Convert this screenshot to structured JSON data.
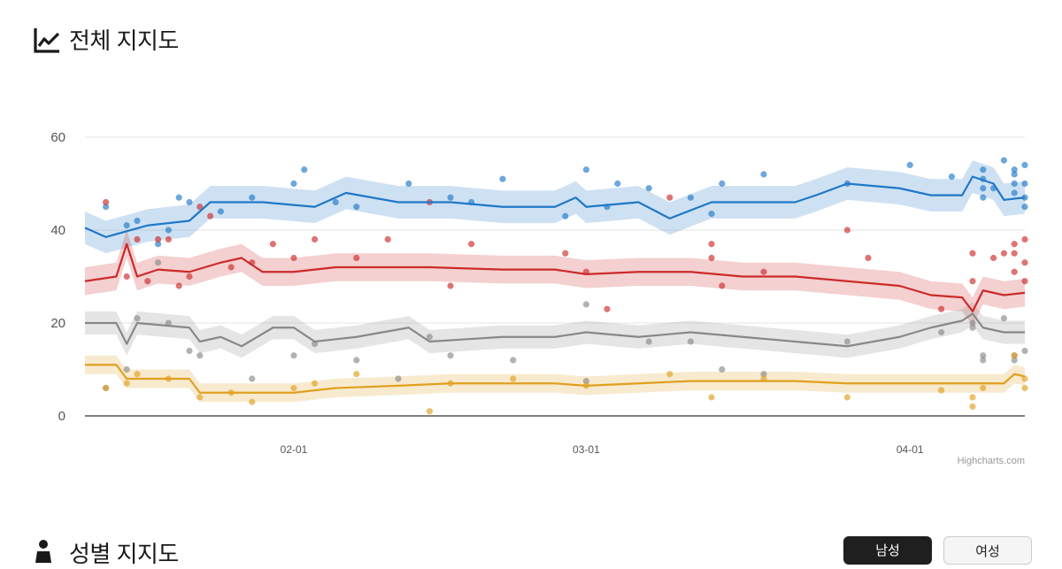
{
  "header": {
    "title": "전체 지지도",
    "icon": "line-chart-icon"
  },
  "gender_section": {
    "title": "성별 지지도",
    "icon": "person-icon",
    "tabs": [
      {
        "label": "남성",
        "active": true
      },
      {
        "label": "여성",
        "active": false
      }
    ]
  },
  "credit": "Highcharts.com",
  "colors": {
    "blue": "#1f78c8",
    "red": "#cc2a2a",
    "gray": "#888888",
    "yellow": "#e0a020"
  },
  "chart_data": {
    "type": "line",
    "title": "",
    "x_axis_type": "date",
    "xlim": [
      "2022-01-12",
      "2022-04-12"
    ],
    "ylim": [
      0,
      60
    ],
    "yticks": [
      0,
      20,
      40,
      60
    ],
    "xticks": [
      "02-01",
      "03-01",
      "04-01"
    ],
    "grid": true,
    "series": [
      {
        "color": "#1f78c8",
        "line": [
          [
            "2022-01-12",
            40.5
          ],
          [
            "2022-01-14",
            38.5
          ],
          [
            "2022-01-18",
            41
          ],
          [
            "2022-01-22",
            42
          ],
          [
            "2022-01-24",
            46
          ],
          [
            "2022-01-29",
            46
          ],
          [
            "2022-02-03",
            45
          ],
          [
            "2022-02-06",
            48
          ],
          [
            "2022-02-11",
            46
          ],
          [
            "2022-02-16",
            46
          ],
          [
            "2022-02-21",
            45
          ],
          [
            "2022-02-26",
            45
          ],
          [
            "2022-02-28",
            47
          ],
          [
            "2022-03-01",
            45
          ],
          [
            "2022-03-06",
            46
          ],
          [
            "2022-03-09",
            42.5
          ],
          [
            "2022-03-13",
            46
          ],
          [
            "2022-03-16",
            46
          ],
          [
            "2022-03-21",
            46
          ],
          [
            "2022-03-23",
            47.5
          ],
          [
            "2022-03-26",
            50
          ],
          [
            "2022-03-31",
            49
          ],
          [
            "2022-04-03",
            47.5
          ],
          [
            "2022-04-06",
            47.5
          ],
          [
            "2022-04-07",
            51.5
          ],
          [
            "2022-04-09",
            50
          ],
          [
            "2022-04-10",
            46.5
          ],
          [
            "2022-04-12",
            47
          ]
        ],
        "band": 3.5,
        "points": [
          [
            "2022-01-14",
            45
          ],
          [
            "2022-01-16",
            41
          ],
          [
            "2022-01-17",
            42
          ],
          [
            "2022-01-19",
            37
          ],
          [
            "2022-01-20",
            40
          ],
          [
            "2022-01-21",
            47
          ],
          [
            "2022-01-22",
            46
          ],
          [
            "2022-01-25",
            44
          ],
          [
            "2022-01-28",
            47
          ],
          [
            "2022-02-01",
            50
          ],
          [
            "2022-02-02",
            53
          ],
          [
            "2022-02-05",
            46
          ],
          [
            "2022-02-07",
            45
          ],
          [
            "2022-02-12",
            50
          ],
          [
            "2022-02-16",
            47
          ],
          [
            "2022-02-18",
            46
          ],
          [
            "2022-02-21",
            51
          ],
          [
            "2022-02-27",
            43
          ],
          [
            "2022-03-01",
            53
          ],
          [
            "2022-03-03",
            45
          ],
          [
            "2022-03-04",
            50
          ],
          [
            "2022-03-07",
            49
          ],
          [
            "2022-03-11",
            47
          ],
          [
            "2022-03-13",
            43.5
          ],
          [
            "2022-03-14",
            50
          ],
          [
            "2022-03-18",
            52
          ],
          [
            "2022-03-26",
            50
          ],
          [
            "2022-04-01",
            54
          ],
          [
            "2022-04-05",
            51.5
          ],
          [
            "2022-04-08",
            53
          ],
          [
            "2022-04-08",
            51
          ],
          [
            "2022-04-08",
            49
          ],
          [
            "2022-04-08",
            47
          ],
          [
            "2022-04-09",
            49
          ],
          [
            "2022-04-10",
            55
          ],
          [
            "2022-04-11",
            53
          ],
          [
            "2022-04-11",
            52
          ],
          [
            "2022-04-11",
            50
          ],
          [
            "2022-04-11",
            48
          ],
          [
            "2022-04-12",
            54
          ],
          [
            "2022-04-12",
            50
          ],
          [
            "2022-04-12",
            47
          ],
          [
            "2022-04-12",
            45
          ]
        ]
      },
      {
        "color": "#cc2a2a",
        "line": [
          [
            "2022-01-12",
            29
          ],
          [
            "2022-01-15",
            30
          ],
          [
            "2022-01-16",
            37
          ],
          [
            "2022-01-17",
            30
          ],
          [
            "2022-01-19",
            31.5
          ],
          [
            "2022-01-22",
            31
          ],
          [
            "2022-01-25",
            33
          ],
          [
            "2022-01-27",
            34
          ],
          [
            "2022-01-29",
            31
          ],
          [
            "2022-02-01",
            31
          ],
          [
            "2022-02-05",
            32
          ],
          [
            "2022-02-11",
            32
          ],
          [
            "2022-02-14",
            32
          ],
          [
            "2022-02-21",
            31.5
          ],
          [
            "2022-02-26",
            31.5
          ],
          [
            "2022-03-01",
            30.5
          ],
          [
            "2022-03-06",
            31
          ],
          [
            "2022-03-11",
            31
          ],
          [
            "2022-03-16",
            30
          ],
          [
            "2022-03-21",
            30
          ],
          [
            "2022-03-26",
            29
          ],
          [
            "2022-03-31",
            28
          ],
          [
            "2022-04-03",
            26
          ],
          [
            "2022-04-06",
            25.5
          ],
          [
            "2022-04-07",
            22.5
          ],
          [
            "2022-04-08",
            27
          ],
          [
            "2022-04-10",
            26
          ],
          [
            "2022-04-12",
            26.5
          ]
        ],
        "band": 3,
        "points": [
          [
            "2022-01-14",
            46
          ],
          [
            "2022-01-16",
            30
          ],
          [
            "2022-01-17",
            38
          ],
          [
            "2022-01-18",
            29
          ],
          [
            "2022-01-19",
            38
          ],
          [
            "2022-01-20",
            38
          ],
          [
            "2022-01-21",
            28
          ],
          [
            "2022-01-22",
            30
          ],
          [
            "2022-01-23",
            45
          ],
          [
            "2022-01-24",
            43
          ],
          [
            "2022-01-26",
            32
          ],
          [
            "2022-01-28",
            33
          ],
          [
            "2022-01-30",
            37
          ],
          [
            "2022-02-01",
            34
          ],
          [
            "2022-02-03",
            38
          ],
          [
            "2022-02-07",
            34
          ],
          [
            "2022-02-10",
            38
          ],
          [
            "2022-02-14",
            46
          ],
          [
            "2022-02-16",
            28
          ],
          [
            "2022-02-18",
            37
          ],
          [
            "2022-02-27",
            35
          ],
          [
            "2022-03-01",
            31
          ],
          [
            "2022-03-03",
            23
          ],
          [
            "2022-03-09",
            47
          ],
          [
            "2022-03-13",
            37
          ],
          [
            "2022-03-13",
            34
          ],
          [
            "2022-03-14",
            28
          ],
          [
            "2022-03-18",
            31
          ],
          [
            "2022-03-26",
            40
          ],
          [
            "2022-03-28",
            34
          ],
          [
            "2022-04-04",
            23
          ],
          [
            "2022-04-07",
            35
          ],
          [
            "2022-04-07",
            29
          ],
          [
            "2022-04-09",
            34
          ],
          [
            "2022-04-10",
            35
          ],
          [
            "2022-04-11",
            37
          ],
          [
            "2022-04-11",
            35
          ],
          [
            "2022-04-11",
            31
          ],
          [
            "2022-04-12",
            29
          ],
          [
            "2022-04-12",
            38
          ],
          [
            "2022-04-12",
            33
          ]
        ]
      },
      {
        "color": "#888888",
        "line": [
          [
            "2022-01-12",
            20
          ],
          [
            "2022-01-15",
            20
          ],
          [
            "2022-01-16",
            15.5
          ],
          [
            "2022-01-17",
            20
          ],
          [
            "2022-01-22",
            19
          ],
          [
            "2022-01-23",
            16
          ],
          [
            "2022-01-25",
            17
          ],
          [
            "2022-01-27",
            15
          ],
          [
            "2022-01-30",
            19
          ],
          [
            "2022-02-01",
            19
          ],
          [
            "2022-02-03",
            16
          ],
          [
            "2022-02-07",
            17
          ],
          [
            "2022-02-12",
            19
          ],
          [
            "2022-02-14",
            16
          ],
          [
            "2022-02-21",
            17
          ],
          [
            "2022-02-26",
            17
          ],
          [
            "2022-03-01",
            18
          ],
          [
            "2022-03-06",
            17
          ],
          [
            "2022-03-11",
            18
          ],
          [
            "2022-03-16",
            17
          ],
          [
            "2022-03-21",
            16
          ],
          [
            "2022-03-26",
            15
          ],
          [
            "2022-03-31",
            17
          ],
          [
            "2022-04-03",
            19
          ],
          [
            "2022-04-06",
            20.5
          ],
          [
            "2022-04-07",
            22
          ],
          [
            "2022-04-08",
            19
          ],
          [
            "2022-04-10",
            18
          ],
          [
            "2022-04-12",
            18
          ]
        ],
        "band": 2.5,
        "points": [
          [
            "2022-01-14",
            6
          ],
          [
            "2022-01-16",
            10
          ],
          [
            "2022-01-17",
            21
          ],
          [
            "2022-01-19",
            33
          ],
          [
            "2022-01-20",
            20
          ],
          [
            "2022-01-22",
            14
          ],
          [
            "2022-01-23",
            13
          ],
          [
            "2022-01-28",
            8
          ],
          [
            "2022-02-01",
            13
          ],
          [
            "2022-02-03",
            15.5
          ],
          [
            "2022-02-07",
            12
          ],
          [
            "2022-02-11",
            8
          ],
          [
            "2022-02-14",
            17
          ],
          [
            "2022-02-16",
            13
          ],
          [
            "2022-02-22",
            12
          ],
          [
            "2022-03-01",
            24
          ],
          [
            "2022-03-01",
            7.5
          ],
          [
            "2022-03-07",
            16
          ],
          [
            "2022-03-11",
            16
          ],
          [
            "2022-03-14",
            10
          ],
          [
            "2022-03-18",
            9
          ],
          [
            "2022-03-26",
            16
          ],
          [
            "2022-04-04",
            18
          ],
          [
            "2022-04-07",
            20
          ],
          [
            "2022-04-07",
            19
          ],
          [
            "2022-04-08",
            13
          ],
          [
            "2022-04-08",
            12
          ],
          [
            "2022-04-10",
            21
          ],
          [
            "2022-04-11",
            12
          ],
          [
            "2022-04-11",
            13
          ],
          [
            "2022-04-12",
            14
          ]
        ]
      },
      {
        "color": "#e0a020",
        "line": [
          [
            "2022-01-12",
            11
          ],
          [
            "2022-01-15",
            11
          ],
          [
            "2022-01-16",
            8
          ],
          [
            "2022-01-22",
            8
          ],
          [
            "2022-01-23",
            5
          ],
          [
            "2022-02-01",
            5
          ],
          [
            "2022-02-05",
            6
          ],
          [
            "2022-02-11",
            6.5
          ],
          [
            "2022-02-16",
            7
          ],
          [
            "2022-02-21",
            7
          ],
          [
            "2022-02-26",
            7
          ],
          [
            "2022-03-01",
            6.5
          ],
          [
            "2022-03-06",
            7
          ],
          [
            "2022-03-11",
            7.5
          ],
          [
            "2022-03-16",
            7.5
          ],
          [
            "2022-03-21",
            7.5
          ],
          [
            "2022-03-26",
            7
          ],
          [
            "2022-03-31",
            7
          ],
          [
            "2022-04-03",
            7
          ],
          [
            "2022-04-06",
            7
          ],
          [
            "2022-04-10",
            7
          ],
          [
            "2022-04-11",
            9
          ],
          [
            "2022-04-12",
            8.5
          ]
        ],
        "band": 2,
        "points": [
          [
            "2022-01-14",
            6
          ],
          [
            "2022-01-16",
            7
          ],
          [
            "2022-01-17",
            9
          ],
          [
            "2022-01-20",
            8
          ],
          [
            "2022-01-23",
            4
          ],
          [
            "2022-01-26",
            5
          ],
          [
            "2022-01-28",
            3
          ],
          [
            "2022-02-01",
            6
          ],
          [
            "2022-02-03",
            7
          ],
          [
            "2022-02-07",
            9
          ],
          [
            "2022-02-14",
            1
          ],
          [
            "2022-02-16",
            7
          ],
          [
            "2022-02-22",
            8
          ],
          [
            "2022-03-01",
            6.5
          ],
          [
            "2022-03-09",
            9
          ],
          [
            "2022-03-13",
            4
          ],
          [
            "2022-03-18",
            8
          ],
          [
            "2022-03-26",
            4
          ],
          [
            "2022-04-04",
            5.5
          ],
          [
            "2022-04-07",
            4
          ],
          [
            "2022-04-07",
            2
          ],
          [
            "2022-04-08",
            6
          ],
          [
            "2022-04-11",
            13
          ],
          [
            "2022-04-12",
            6
          ],
          [
            "2022-04-12",
            8
          ]
        ]
      }
    ]
  }
}
